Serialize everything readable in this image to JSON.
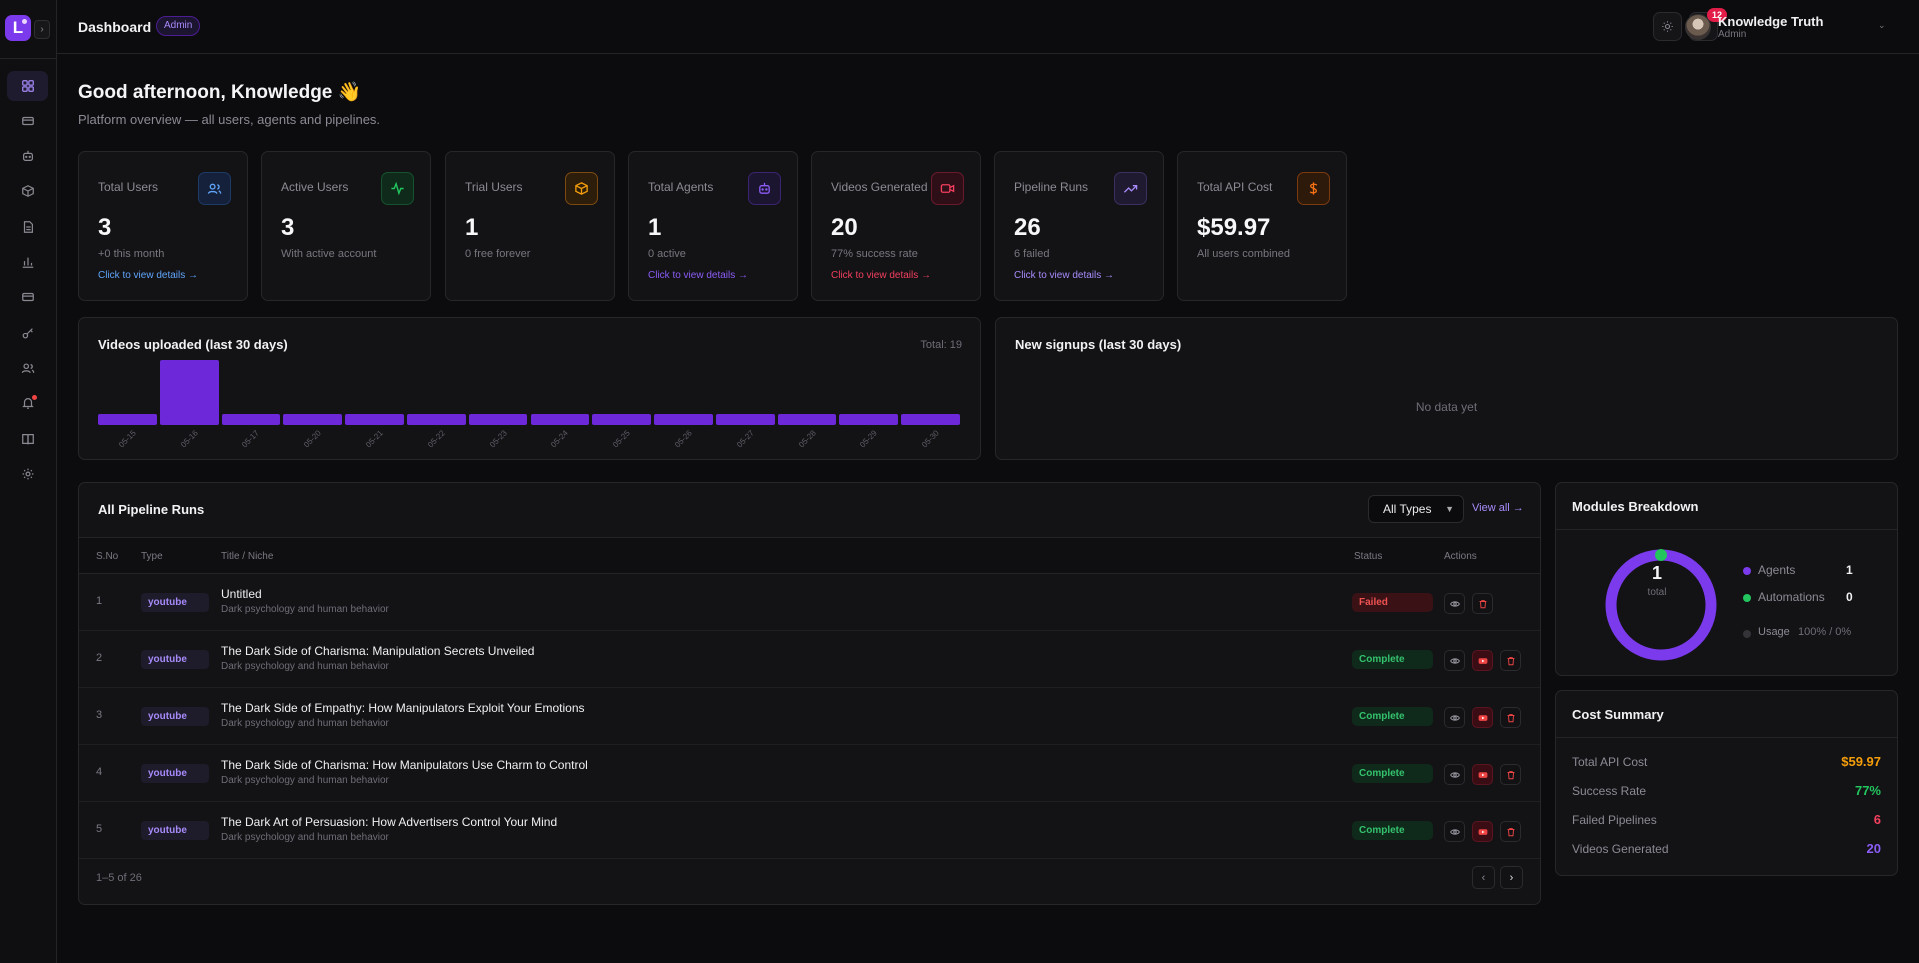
{
  "app": {
    "logo_letter": "L"
  },
  "header": {
    "title": "Dashboard",
    "role_badge": "Admin",
    "notifications_count": "12",
    "user": {
      "name": "Knowledge Truth",
      "role": "Admin"
    }
  },
  "greeting": {
    "title": "Good afternoon, Knowledge 👋",
    "subtitle": "Platform overview — all users, agents and pipelines."
  },
  "stats": [
    {
      "label": "Total Users",
      "value": "3",
      "sub": "+0 this month",
      "link": "Click to view details →",
      "icon": "users-icon",
      "color": "#60a5fa"
    },
    {
      "label": "Active Users",
      "value": "3",
      "sub": "With active account",
      "link": "",
      "icon": "activity-icon",
      "color": "#22c55e"
    },
    {
      "label": "Trial Users",
      "value": "1",
      "sub": "0 free forever",
      "link": "",
      "icon": "package-icon",
      "color": "#f59e0b"
    },
    {
      "label": "Total Agents",
      "value": "1",
      "sub": "0 active",
      "link": "Click to view details →",
      "icon": "bot-icon",
      "color": "#8b5cf6"
    },
    {
      "label": "Videos Generated",
      "value": "20",
      "sub": "77% success rate",
      "link": "Click to view details →",
      "icon": "video-icon",
      "color": "#f43f5e"
    },
    {
      "label": "Pipeline Runs",
      "value": "26",
      "sub": "6 failed",
      "link": "Click to view details →",
      "icon": "trending-up-icon",
      "color": "#a78bfa"
    },
    {
      "label": "Total API Cost",
      "value": "$59.97",
      "sub": "All users combined",
      "link": "",
      "icon": "dollar-icon",
      "color": "#f97316"
    }
  ],
  "videos_chart": {
    "title": "Videos uploaded (last 30 days)",
    "total_label": "Total: 19",
    "chart_data": {
      "type": "bar",
      "categories": [
        "05-15",
        "05-16",
        "05-17",
        "05-20",
        "05-21",
        "05-22",
        "05-23",
        "05-24",
        "05-25",
        "05-26",
        "05-27",
        "05-28",
        "05-29",
        "05-30"
      ],
      "values": [
        1,
        6,
        1,
        1,
        1,
        1,
        1,
        1,
        1,
        1,
        1,
        1,
        1,
        1
      ],
      "ylim": [
        0,
        6
      ]
    }
  },
  "signups_chart": {
    "title": "New signups (last 30 days)",
    "empty_text": "No data yet"
  },
  "pipeline_runs": {
    "title": "All Pipeline Runs",
    "filter_selected": "All Types",
    "view_all": "View all →",
    "columns": {
      "no": "S.No",
      "type": "Type",
      "title": "Title / Niche",
      "status": "Status",
      "actions": "Actions"
    },
    "rows": [
      {
        "no": "1",
        "type": "youtube",
        "title": "Untitled",
        "niche": "Dark psychology and human behavior",
        "status": "Failed"
      },
      {
        "no": "2",
        "type": "youtube",
        "title": "The Dark Side of Charisma: Manipulation Secrets Unveiled",
        "niche": "Dark psychology and human behavior",
        "status": "Complete"
      },
      {
        "no": "3",
        "type": "youtube",
        "title": "The Dark Side of Empathy: How Manipulators Exploit Your Emotions",
        "niche": "Dark psychology and human behavior",
        "status": "Complete"
      },
      {
        "no": "4",
        "type": "youtube",
        "title": "The Dark Side of Charisma: How Manipulators Use Charm to Control",
        "niche": "Dark psychology and human behavior",
        "status": "Complete"
      },
      {
        "no": "5",
        "type": "youtube",
        "title": "The Dark Art of Persuasion: How Advertisers Control Your Mind",
        "niche": "Dark psychology and human behavior",
        "status": "Complete"
      }
    ],
    "pagination": "1–5 of 26"
  },
  "modules": {
    "title": "Modules Breakdown",
    "total": "1",
    "total_label": "total",
    "agents_label": "Agents",
    "agents_value": "1",
    "automations_label": "Automations",
    "automations_value": "0",
    "usage_label": "Usage",
    "usage_value": "100% / 0%",
    "agents_color": "#7c3aed",
    "automations_color": "#22c55e"
  },
  "cost_summary": {
    "title": "Cost Summary",
    "items": [
      {
        "label": "Total API Cost",
        "value": "$59.97",
        "color": "#f59e0b"
      },
      {
        "label": "Success Rate",
        "value": "77%",
        "color": "#22c55e"
      },
      {
        "label": "Failed Pipelines",
        "value": "6",
        "color": "#f43f5e"
      },
      {
        "label": "Videos Generated",
        "value": "20",
        "color": "#8b5cf6"
      }
    ]
  }
}
